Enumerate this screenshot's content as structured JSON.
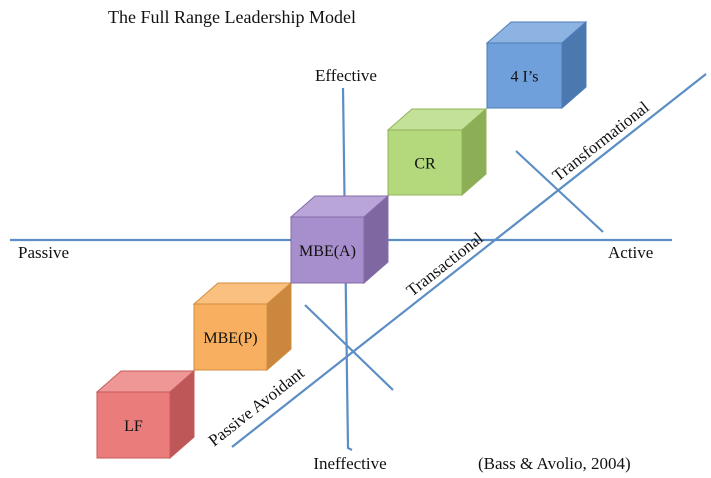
{
  "title": "The Full Range Leadership Model",
  "axes": {
    "top": "Effective",
    "bottom": "Ineffective",
    "left": "Passive",
    "right": "Active"
  },
  "diagonal_labels": {
    "passive_avoidant": "Passive Avoidant",
    "transactional": "Transactional",
    "transformational": "Transformational"
  },
  "citation": "(Bass & Avolio, 2004)",
  "line_color": "#5b8ec4",
  "cubes": [
    {
      "label": "LF",
      "color": "#e86a6a"
    },
    {
      "label": "MBE(P)",
      "color": "#f7a54a"
    },
    {
      "label": "MBE(A)",
      "color": "#9b7fc6"
    },
    {
      "label": "CR",
      "color": "#a9d46a"
    },
    {
      "label": "4 I’s",
      "color": "#5b93d6"
    }
  ]
}
